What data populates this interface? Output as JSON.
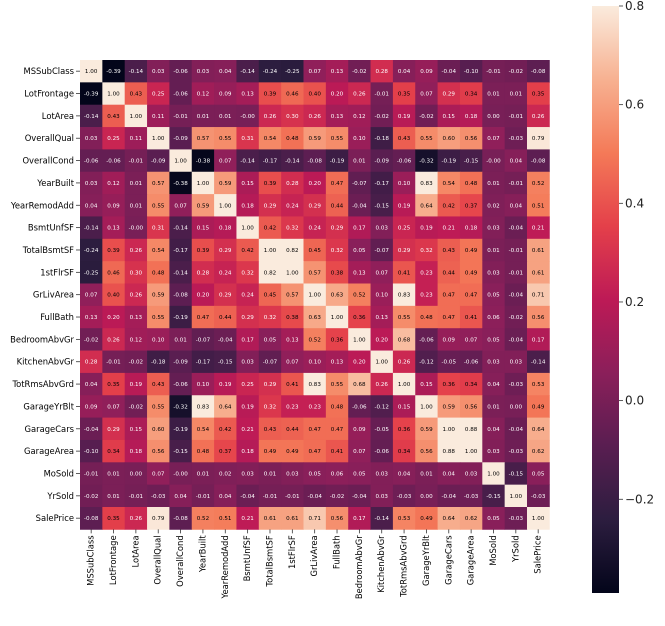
{
  "chart_data": {
    "type": "heatmap",
    "variables": [
      "MSSubClass",
      "LotFrontage",
      "LotArea",
      "OverallQual",
      "OverallCond",
      "YearBuilt",
      "YearRemodAdd",
      "BsmtUnfSF",
      "TotalBsmtSF",
      "1stFlrSF",
      "GrLivArea",
      "FullBath",
      "BedroomAbvGr",
      "KitchenAbvGr",
      "TotRmsAbvGrd",
      "GarageYrBlt",
      "GarageCars",
      "GarageArea",
      "MoSold",
      "YrSold",
      "SalePrice"
    ],
    "matrix": [
      [
        "1.00",
        "-0.39",
        "-0.14",
        "0.03",
        "-0.06",
        "0.03",
        "0.04",
        "-0.14",
        "-0.24",
        "-0.25",
        "0.07",
        "0.13",
        "-0.02",
        "0.28",
        "0.04",
        "0.09",
        "-0.04",
        "-0.10",
        "-0.01",
        "-0.02",
        "-0.08"
      ],
      [
        "-0.39",
        "1.00",
        "0.43",
        "0.25",
        "-0.06",
        "0.12",
        "0.09",
        "0.13",
        "0.39",
        "0.46",
        "0.40",
        "0.20",
        "0.26",
        "-0.01",
        "0.35",
        "0.07",
        "0.29",
        "0.34",
        "0.01",
        "0.01",
        "0.35"
      ],
      [
        "-0.14",
        "0.43",
        "1.00",
        "0.11",
        "-0.01",
        "0.01",
        "0.01",
        "-0.00",
        "0.26",
        "0.30",
        "0.26",
        "0.13",
        "0.12",
        "-0.02",
        "0.19",
        "-0.02",
        "0.15",
        "0.18",
        "0.00",
        "-0.01",
        "0.26"
      ],
      [
        "0.03",
        "0.25",
        "0.11",
        "1.00",
        "-0.09",
        "0.57",
        "0.55",
        "0.31",
        "0.54",
        "0.48",
        "0.59",
        "0.55",
        "0.10",
        "-0.18",
        "0.43",
        "0.55",
        "0.60",
        "0.56",
        "0.07",
        "-0.03",
        "0.79"
      ],
      [
        "-0.06",
        "-0.06",
        "-0.01",
        "-0.09",
        "1.00",
        "-0.38",
        "0.07",
        "-0.14",
        "-0.17",
        "-0.14",
        "-0.08",
        "-0.19",
        "0.01",
        "-0.09",
        "-0.06",
        "-0.32",
        "-0.19",
        "-0.15",
        "-0.00",
        "0.04",
        "-0.08"
      ],
      [
        "0.03",
        "0.12",
        "0.01",
        "0.57",
        "-0.38",
        "1.00",
        "0.59",
        "0.15",
        "0.39",
        "0.28",
        "0.20",
        "0.47",
        "-0.07",
        "-0.17",
        "0.10",
        "0.83",
        "0.54",
        "0.48",
        "0.01",
        "-0.01",
        "0.52"
      ],
      [
        "0.04",
        "0.09",
        "0.01",
        "0.55",
        "0.07",
        "0.59",
        "1.00",
        "0.18",
        "0.29",
        "0.24",
        "0.29",
        "0.44",
        "-0.04",
        "-0.15",
        "0.19",
        "0.64",
        "0.42",
        "0.37",
        "0.02",
        "0.04",
        "0.51"
      ],
      [
        "-0.14",
        "0.13",
        "-0.00",
        "0.31",
        "-0.14",
        "0.15",
        "0.18",
        "1.00",
        "0.42",
        "0.32",
        "0.24",
        "0.29",
        "0.17",
        "0.03",
        "0.25",
        "0.19",
        "0.21",
        "0.18",
        "0.03",
        "-0.04",
        "0.21"
      ],
      [
        "-0.24",
        "0.39",
        "0.26",
        "0.54",
        "-0.17",
        "0.39",
        "0.29",
        "0.42",
        "1.00",
        "0.82",
        "0.45",
        "0.32",
        "0.05",
        "-0.07",
        "0.29",
        "0.32",
        "0.43",
        "0.49",
        "0.01",
        "-0.01",
        "0.61"
      ],
      [
        "-0.25",
        "0.46",
        "0.30",
        "0.48",
        "-0.14",
        "0.28",
        "0.24",
        "0.32",
        "0.82",
        "1.00",
        "0.57",
        "0.38",
        "0.13",
        "0.07",
        "0.41",
        "0.23",
        "0.44",
        "0.49",
        "0.03",
        "-0.01",
        "0.61"
      ],
      [
        "0.07",
        "0.40",
        "0.26",
        "0.59",
        "-0.08",
        "0.20",
        "0.29",
        "0.24",
        "0.45",
        "0.57",
        "1.00",
        "0.63",
        "0.52",
        "0.10",
        "0.83",
        "0.23",
        "0.47",
        "0.47",
        "0.05",
        "-0.04",
        "0.71"
      ],
      [
        "0.13",
        "0.20",
        "0.13",
        "0.55",
        "-0.19",
        "0.47",
        "0.44",
        "0.29",
        "0.32",
        "0.38",
        "0.63",
        "1.00",
        "0.36",
        "0.13",
        "0.55",
        "0.48",
        "0.47",
        "0.41",
        "0.06",
        "-0.02",
        "0.56"
      ],
      [
        "-0.02",
        "0.26",
        "0.12",
        "0.10",
        "0.01",
        "-0.07",
        "-0.04",
        "0.17",
        "0.05",
        "0.13",
        "0.52",
        "0.36",
        "1.00",
        "0.20",
        "0.68",
        "-0.06",
        "0.09",
        "0.07",
        "0.05",
        "-0.04",
        "0.17"
      ],
      [
        "0.28",
        "-0.01",
        "-0.02",
        "-0.18",
        "-0.09",
        "-0.17",
        "-0.15",
        "0.03",
        "-0.07",
        "0.07",
        "0.10",
        "0.13",
        "0.20",
        "1.00",
        "0.26",
        "-0.12",
        "-0.05",
        "-0.06",
        "0.03",
        "0.03",
        "-0.14"
      ],
      [
        "0.04",
        "0.35",
        "0.19",
        "0.43",
        "-0.06",
        "0.10",
        "0.19",
        "0.25",
        "0.29",
        "0.41",
        "0.83",
        "0.55",
        "0.68",
        "0.26",
        "1.00",
        "0.15",
        "0.36",
        "0.34",
        "0.04",
        "-0.03",
        "0.53"
      ],
      [
        "0.09",
        "0.07",
        "-0.02",
        "0.55",
        "-0.32",
        "0.83",
        "0.64",
        "0.19",
        "0.32",
        "0.23",
        "0.23",
        "0.48",
        "-0.06",
        "-0.12",
        "0.15",
        "1.00",
        "0.59",
        "0.56",
        "0.01",
        "0.00",
        "0.49"
      ],
      [
        "-0.04",
        "0.29",
        "0.15",
        "0.60",
        "-0.19",
        "0.54",
        "0.42",
        "0.21",
        "0.43",
        "0.44",
        "0.47",
        "0.47",
        "0.09",
        "-0.05",
        "0.36",
        "0.59",
        "1.00",
        "0.88",
        "0.04",
        "-0.04",
        "0.64"
      ],
      [
        "-0.10",
        "0.34",
        "0.18",
        "0.56",
        "-0.15",
        "0.48",
        "0.37",
        "0.18",
        "0.49",
        "0.49",
        "0.47",
        "0.41",
        "0.07",
        "-0.06",
        "0.34",
        "0.56",
        "0.88",
        "1.00",
        "0.03",
        "-0.03",
        "0.62"
      ],
      [
        "-0.01",
        "0.01",
        "0.00",
        "0.07",
        "-0.00",
        "0.01",
        "0.02",
        "0.03",
        "0.01",
        "0.03",
        "0.05",
        "0.06",
        "0.05",
        "0.03",
        "0.04",
        "0.01",
        "0.04",
        "0.03",
        "1.00",
        "-0.15",
        "0.05"
      ],
      [
        "-0.02",
        "0.01",
        "-0.01",
        "-0.03",
        "0.04",
        "-0.01",
        "0.04",
        "-0.04",
        "-0.01",
        "-0.01",
        "-0.04",
        "-0.02",
        "-0.04",
        "0.03",
        "-0.03",
        "0.00",
        "-0.04",
        "-0.03",
        "-0.15",
        "1.00",
        "-0.03"
      ],
      [
        "-0.08",
        "0.35",
        "0.26",
        "0.79",
        "-0.08",
        "0.52",
        "0.51",
        "0.21",
        "0.61",
        "0.61",
        "0.71",
        "0.56",
        "0.17",
        "-0.14",
        "0.53",
        "0.49",
        "0.64",
        "0.62",
        "0.05",
        "-0.03",
        "1.00"
      ]
    ],
    "vmin": -0.39,
    "vmax": 0.8,
    "colormap": "rocket",
    "colorbar_ticks": [
      {
        "value": 0.8,
        "label": "0.8"
      },
      {
        "value": 0.6,
        "label": "0.6"
      },
      {
        "value": 0.4,
        "label": "0.4"
      },
      {
        "value": 0.2,
        "label": "0.2"
      },
      {
        "value": 0.0,
        "label": "0.0"
      },
      {
        "value": -0.2,
        "label": "−0.2"
      }
    ]
  }
}
